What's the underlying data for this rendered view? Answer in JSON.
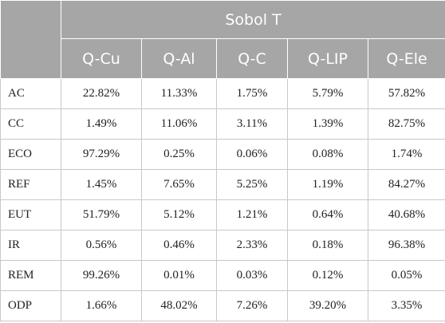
{
  "table": {
    "group_header": "Sobol T",
    "columns": [
      "Q-Cu",
      "Q-Al",
      "Q-C",
      "Q-LIP",
      "Q-Ele"
    ],
    "rows": [
      {
        "label": "AC",
        "values": [
          "22.82%",
          "11.33%",
          "1.75%",
          "5.79%",
          "57.82%"
        ]
      },
      {
        "label": "CC",
        "values": [
          "1.49%",
          "11.06%",
          "3.11%",
          "1.39%",
          "82.75%"
        ]
      },
      {
        "label": "ECO",
        "values": [
          "97.29%",
          "0.25%",
          "0.06%",
          "0.08%",
          "1.74%"
        ]
      },
      {
        "label": "REF",
        "values": [
          "1.45%",
          "7.65%",
          "5.25%",
          "1.19%",
          "84.27%"
        ]
      },
      {
        "label": "EUT",
        "values": [
          "51.79%",
          "5.12%",
          "1.21%",
          "0.64%",
          "40.68%"
        ]
      },
      {
        "label": "IR",
        "values": [
          "0.56%",
          "0.46%",
          "2.33%",
          "0.18%",
          "96.38%"
        ]
      },
      {
        "label": "REM",
        "values": [
          "99.26%",
          "0.01%",
          "0.03%",
          "0.12%",
          "0.05%"
        ]
      },
      {
        "label": "ODP",
        "values": [
          "1.66%",
          "48.02%",
          "7.26%",
          "39.20%",
          "3.35%"
        ]
      }
    ]
  },
  "colors": {
    "header_background": "#a6a6a6",
    "header_text": "#ffffff",
    "grid_line": "#c8c8c8"
  }
}
